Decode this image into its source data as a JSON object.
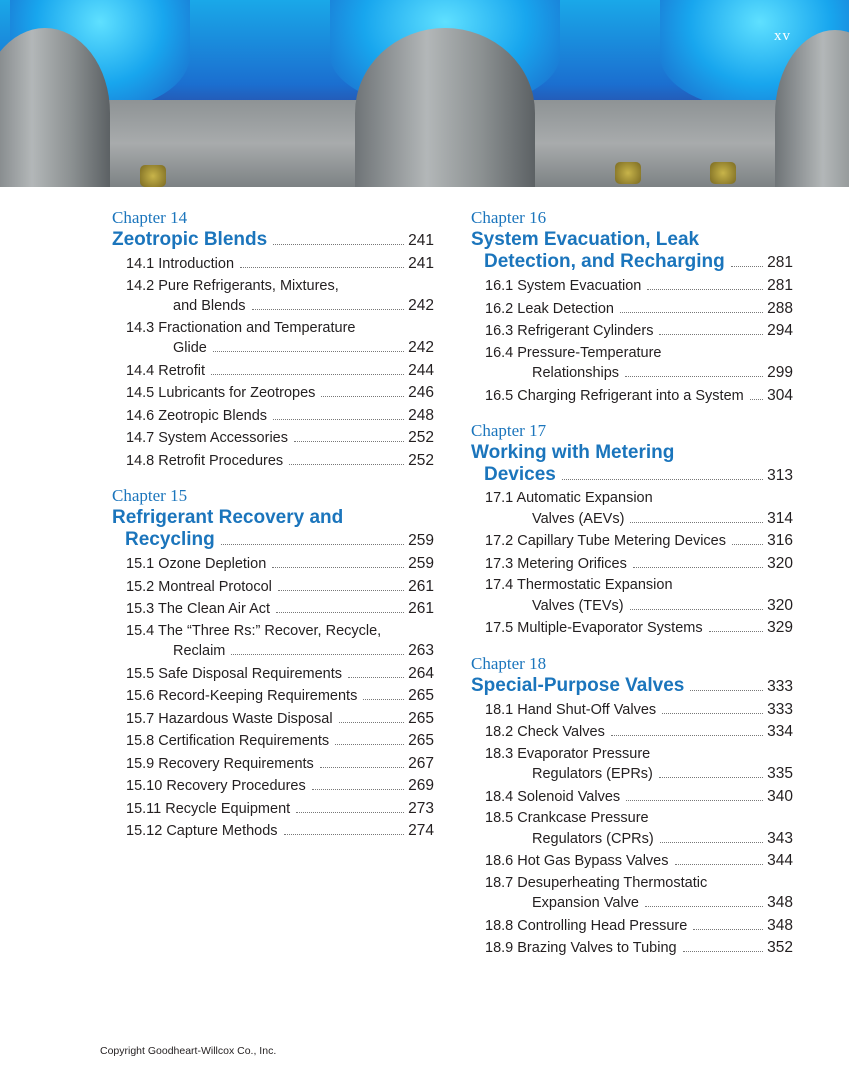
{
  "folio": "xv",
  "copyright": "Copyright Goodheart-Willcox Co., Inc.",
  "colors": {
    "accent": "#1b75bc"
  },
  "columns": [
    [
      {
        "label": "Chapter 14",
        "title": [
          "Zeotropic Blends"
        ],
        "page": "241",
        "entries": [
          {
            "lines": [
              "14.1 Introduction"
            ],
            "page": "241"
          },
          {
            "lines": [
              "14.2 Pure Refrigerants, Mixtures,",
              "and Blends"
            ],
            "page": "242"
          },
          {
            "lines": [
              "14.3 Fractionation and Temperature",
              "Glide"
            ],
            "page": "242"
          },
          {
            "lines": [
              "14.4 Retrofit"
            ],
            "page": "244"
          },
          {
            "lines": [
              "14.5 Lubricants for Zeotropes"
            ],
            "page": "246"
          },
          {
            "lines": [
              "14.6 Zeotropic Blends"
            ],
            "page": "248"
          },
          {
            "lines": [
              "14.7 System Accessories"
            ],
            "page": "252"
          },
          {
            "lines": [
              "14.8 Retrofit Procedures"
            ],
            "page": "252"
          }
        ]
      },
      {
        "label": "Chapter 15",
        "title": [
          "Refrigerant Recovery and",
          "Recycling"
        ],
        "page": "259",
        "entries": [
          {
            "lines": [
              "15.1 Ozone Depletion"
            ],
            "page": "259"
          },
          {
            "lines": [
              "15.2 Montreal Protocol"
            ],
            "page": "261"
          },
          {
            "lines": [
              "15.3 The Clean Air Act"
            ],
            "page": "261"
          },
          {
            "lines": [
              "15.4 The “Three Rs:” Recover, Recycle,",
              "Reclaim"
            ],
            "page": "263"
          },
          {
            "lines": [
              "15.5 Safe Disposal Requirements"
            ],
            "page": "264"
          },
          {
            "lines": [
              "15.6 Record-Keeping Requirements"
            ],
            "page": "265"
          },
          {
            "lines": [
              "15.7 Hazardous Waste Disposal"
            ],
            "page": "265"
          },
          {
            "lines": [
              "15.8 Certification Requirements"
            ],
            "page": "265"
          },
          {
            "lines": [
              "15.9 Recovery Requirements"
            ],
            "page": "267"
          },
          {
            "lines": [
              "15.10 Recovery Procedures"
            ],
            "page": "269"
          },
          {
            "lines": [
              "15.11 Recycle Equipment"
            ],
            "page": "273"
          },
          {
            "lines": [
              "15.12 Capture Methods"
            ],
            "page": "274"
          }
        ]
      }
    ],
    [
      {
        "label": "Chapter 16",
        "title": [
          "System Evacuation, Leak",
          "Detection, and Recharging"
        ],
        "page": "281",
        "entries": [
          {
            "lines": [
              "16.1 System Evacuation"
            ],
            "page": "281"
          },
          {
            "lines": [
              "16.2 Leak Detection"
            ],
            "page": "288"
          },
          {
            "lines": [
              "16.3 Refrigerant Cylinders"
            ],
            "page": "294"
          },
          {
            "lines": [
              "16.4 Pressure-Temperature",
              "Relationships"
            ],
            "page": "299"
          },
          {
            "lines": [
              "16.5 Charging Refrigerant into a System"
            ],
            "page": "304"
          }
        ]
      },
      {
        "label": "Chapter 17",
        "title": [
          "Working with Metering",
          "Devices"
        ],
        "page": "313",
        "entries": [
          {
            "lines": [
              "17.1 Automatic Expansion",
              "Valves (AEVs)"
            ],
            "page": "314"
          },
          {
            "lines": [
              "17.2 Capillary Tube Metering Devices"
            ],
            "page": "316"
          },
          {
            "lines": [
              "17.3 Metering Orifices"
            ],
            "page": "320"
          },
          {
            "lines": [
              "17.4 Thermostatic Expansion",
              "Valves (TEVs)"
            ],
            "page": "320"
          },
          {
            "lines": [
              "17.5 Multiple-Evaporator Systems"
            ],
            "page": "329"
          }
        ]
      },
      {
        "label": "Chapter 18",
        "title": [
          "Special-Purpose Valves"
        ],
        "page": "333",
        "entries": [
          {
            "lines": [
              "18.1 Hand Shut-Off Valves"
            ],
            "page": "333"
          },
          {
            "lines": [
              "18.2 Check Valves"
            ],
            "page": "334"
          },
          {
            "lines": [
              "18.3 Evaporator Pressure",
              "Regulators (EPRs)"
            ],
            "page": "335"
          },
          {
            "lines": [
              "18.4 Solenoid Valves"
            ],
            "page": "340"
          },
          {
            "lines": [
              "18.5 Crankcase Pressure",
              "Regulators (CPRs)"
            ],
            "page": "343"
          },
          {
            "lines": [
              "18.6 Hot Gas Bypass Valves"
            ],
            "page": "344"
          },
          {
            "lines": [
              "18.7 Desuperheating Thermostatic",
              "Expansion Valve"
            ],
            "page": "348"
          },
          {
            "lines": [
              "18.8 Controlling Head Pressure"
            ],
            "page": "348"
          },
          {
            "lines": [
              "18.9 Brazing Valves to Tubing"
            ],
            "page": "352"
          }
        ]
      }
    ]
  ]
}
